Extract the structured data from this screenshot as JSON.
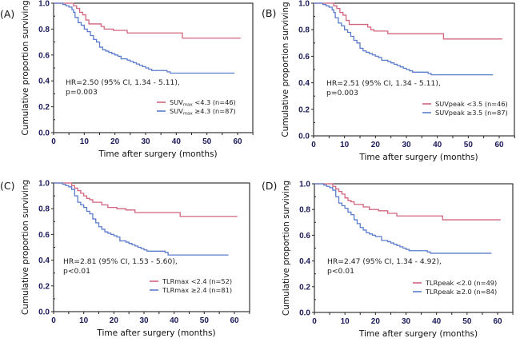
{
  "figure": {
    "colors": {
      "low": "#d2657d",
      "high": "#5b7ccc",
      "axis": "#222222",
      "tick_label": "#1a1a5a"
    }
  },
  "chart_data": [
    {
      "type": "line",
      "panel_label": "(A)",
      "title": "",
      "xlabel": "Time after surgery (months)",
      "ylabel": "Cumulative proportion surviving",
      "xlim": [
        0,
        65
      ],
      "ylim": [
        0,
        1.0
      ],
      "xticks": [
        "0",
        "10",
        "20",
        "30",
        "40",
        "50",
        "60"
      ],
      "yticks": [
        "0.0",
        "0.2",
        "0.4",
        "0.6",
        "0.8",
        "1.0"
      ],
      "annotation": [
        "HR=2.50 (95% CI, 1.34 - 5.11),",
        "p=0.003"
      ],
      "legend_position": "lower-right",
      "series": [
        {
          "name": "SUVmax <4.3 (n=46)",
          "legend_main": "SUV",
          "legend_sub": "max",
          "legend_rest": " <4.3 (n=46)",
          "group": "low",
          "x": [
            0,
            6.5,
            7.5,
            8.5,
            9.5,
            10.5,
            11.5,
            15.5,
            16.5,
            19.5,
            24,
            42,
            61
          ],
          "y": [
            1.0,
            0.98,
            0.96,
            0.93,
            0.91,
            0.87,
            0.84,
            0.82,
            0.8,
            0.79,
            0.77,
            0.73,
            0.73
          ]
        },
        {
          "name": "SUVmax ≥4.3 (n=87)",
          "legend_main": "SUV",
          "legend_sub": "max",
          "legend_rest": " ≥4.3 (n=87)",
          "group": "high",
          "x": [
            0,
            3,
            4,
            5,
            6,
            6.5,
            7,
            8,
            9,
            10,
            11,
            12,
            13,
            14,
            15,
            16,
            17,
            18,
            19,
            20,
            21,
            22,
            24,
            25,
            26,
            27,
            28,
            29,
            30,
            31,
            32,
            33,
            34,
            36,
            37,
            38,
            59
          ],
          "y": [
            1.0,
            0.99,
            0.98,
            0.97,
            0.95,
            0.93,
            0.89,
            0.85,
            0.83,
            0.8,
            0.78,
            0.75,
            0.72,
            0.7,
            0.66,
            0.64,
            0.63,
            0.62,
            0.61,
            0.6,
            0.59,
            0.57,
            0.56,
            0.55,
            0.54,
            0.53,
            0.52,
            0.51,
            0.5,
            0.49,
            0.48,
            0.48,
            0.48,
            0.48,
            0.47,
            0.46,
            0.46
          ]
        }
      ]
    },
    {
      "type": "line",
      "panel_label": "(B)",
      "title": "",
      "xlabel": "Time after surgery (months)",
      "ylabel": "Cumulative proportion surviving",
      "xlim": [
        0,
        65
      ],
      "ylim": [
        0,
        1.0
      ],
      "xticks": [
        "0",
        "10",
        "20",
        "30",
        "40",
        "50",
        "60"
      ],
      "yticks": [
        "0.0",
        "0.2",
        "0.4",
        "0.6",
        "0.8",
        "1.0"
      ],
      "annotation": [
        "HR=2.51 (95% CI, 1.34 - 5.11),",
        "p=0.003"
      ],
      "legend_position": "lower-right",
      "series": [
        {
          "name": "SUVpeak <3.5 (n=46)",
          "legend_main": "SUVpeak <3.5 (n=46)",
          "legend_sub": "",
          "legend_rest": "",
          "group": "low",
          "x": [
            0,
            6.5,
            7.5,
            8.5,
            9.5,
            10.5,
            11.5,
            17.5,
            18.5,
            19.5,
            24,
            42,
            61
          ],
          "y": [
            1.0,
            0.98,
            0.96,
            0.93,
            0.91,
            0.87,
            0.84,
            0.82,
            0.8,
            0.79,
            0.77,
            0.73,
            0.73
          ]
        },
        {
          "name": "SUVpeak ≥3.5 (n=87)",
          "legend_main": "SUVpeak ≥3.5 (n=87)",
          "legend_sub": "",
          "legend_rest": "",
          "group": "high",
          "x": [
            0,
            3,
            4,
            5,
            6,
            6.5,
            7,
            8,
            9,
            10,
            11,
            12,
            13,
            14,
            15,
            16,
            17,
            18,
            19,
            20,
            21,
            22,
            24,
            25,
            26,
            27,
            28,
            29,
            30,
            31,
            32,
            33,
            34,
            36,
            37,
            38,
            58
          ],
          "y": [
            1.0,
            0.99,
            0.98,
            0.97,
            0.95,
            0.93,
            0.89,
            0.85,
            0.83,
            0.8,
            0.78,
            0.75,
            0.72,
            0.7,
            0.66,
            0.64,
            0.63,
            0.62,
            0.61,
            0.6,
            0.59,
            0.57,
            0.56,
            0.55,
            0.54,
            0.53,
            0.52,
            0.51,
            0.5,
            0.49,
            0.48,
            0.48,
            0.48,
            0.48,
            0.47,
            0.46,
            0.46
          ]
        }
      ]
    },
    {
      "type": "line",
      "panel_label": "(C)",
      "title": "",
      "xlabel": "Time after surgery (months)",
      "ylabel": "Cumulative proportion surviving",
      "xlim": [
        0,
        65
      ],
      "ylim": [
        0,
        1.0
      ],
      "xticks": [
        "0",
        "10",
        "20",
        "30",
        "40",
        "50",
        "60"
      ],
      "yticks": [
        "0.0",
        "0.2",
        "0.4",
        "0.6",
        "0.8",
        "1.0"
      ],
      "annotation": [
        "HR=2.81 (95% CI, 1.53 - 5.60),",
        "p<0.01"
      ],
      "legend_position": "lower-right",
      "series": [
        {
          "name": "TLRmax <2.4 (n=52)",
          "legend_main": "TLRmax <2.4 (n=52)",
          "legend_sub": "",
          "legend_rest": "",
          "group": "low",
          "x": [
            0,
            6,
            7,
            8,
            9,
            10,
            11,
            12,
            13,
            16,
            18,
            21,
            24,
            27,
            42,
            61
          ],
          "y": [
            1.0,
            0.98,
            0.96,
            0.94,
            0.92,
            0.9,
            0.88,
            0.87,
            0.85,
            0.83,
            0.81,
            0.8,
            0.79,
            0.77,
            0.74,
            0.74
          ],
          "x_end": 61
        },
        {
          "name": "TLRmax ≥2.4 (n=81)",
          "legend_main": "TLRmax ≥2.4 (n=81)",
          "legend_sub": "",
          "legend_rest": "",
          "group": "high",
          "x": [
            0,
            3,
            4,
            5,
            6,
            7,
            8,
            9,
            10,
            11,
            12,
            13,
            14,
            15,
            16,
            17,
            18,
            19,
            20,
            21,
            22,
            24,
            25,
            26,
            27,
            28,
            29,
            30,
            31,
            33,
            34,
            37,
            38,
            58
          ],
          "y": [
            1.0,
            0.99,
            0.98,
            0.97,
            0.95,
            0.9,
            0.85,
            0.83,
            0.81,
            0.78,
            0.76,
            0.72,
            0.69,
            0.66,
            0.64,
            0.62,
            0.61,
            0.6,
            0.59,
            0.58,
            0.55,
            0.54,
            0.53,
            0.52,
            0.51,
            0.5,
            0.49,
            0.48,
            0.47,
            0.47,
            0.47,
            0.46,
            0.44,
            0.44
          ]
        }
      ]
    },
    {
      "type": "line",
      "panel_label": "(D)",
      "title": "",
      "xlabel": "Time after surgery (months)",
      "ylabel": "Cumulative proportion surviving",
      "xlim": [
        0,
        65
      ],
      "ylim": [
        0,
        1.0
      ],
      "xticks": [
        "0",
        "10",
        "20",
        "30",
        "40",
        "50",
        "60"
      ],
      "yticks": [
        "0.0",
        "0.2",
        "0.4",
        "0.6",
        "0.8",
        "1.0"
      ],
      "annotation": [
        "HR=2.47 (95% CI, 1.34 - 4.92),",
        "p<0.01"
      ],
      "legend_position": "lower-right",
      "series": [
        {
          "name": "TLRpeak <2.0 (n=49)",
          "legend_main": "TLRpeak <2.0 (n=49)",
          "legend_sub": "",
          "legend_rest": "",
          "group": "low",
          "x": [
            0,
            6,
            7,
            8,
            9,
            10,
            11,
            12,
            13,
            16,
            18,
            21,
            24,
            27,
            42,
            61
          ],
          "y": [
            1.0,
            0.98,
            0.96,
            0.94,
            0.92,
            0.89,
            0.87,
            0.86,
            0.84,
            0.82,
            0.8,
            0.79,
            0.77,
            0.75,
            0.72,
            0.72
          ]
        },
        {
          "name": "TLRpeak ≥2.0 (n=84)",
          "legend_main": "TLRpeak ≥2.0 (n=84)",
          "legend_sub": "",
          "legend_rest": "",
          "group": "high",
          "x": [
            0,
            3,
            4,
            5,
            6,
            7,
            8,
            9,
            10,
            11,
            12,
            13,
            14,
            15,
            16,
            17,
            18,
            19,
            20,
            21,
            22,
            24,
            25,
            26,
            27,
            28,
            29,
            30,
            31,
            33,
            34,
            37,
            38,
            58
          ],
          "y": [
            1.0,
            0.99,
            0.98,
            0.97,
            0.95,
            0.9,
            0.85,
            0.83,
            0.81,
            0.78,
            0.76,
            0.72,
            0.69,
            0.66,
            0.64,
            0.62,
            0.61,
            0.6,
            0.59,
            0.59,
            0.56,
            0.55,
            0.54,
            0.53,
            0.52,
            0.51,
            0.5,
            0.49,
            0.48,
            0.48,
            0.48,
            0.47,
            0.46,
            0.46
          ]
        }
      ]
    }
  ]
}
